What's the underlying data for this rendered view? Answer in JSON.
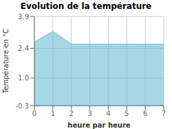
{
  "chart_data": {
    "type": "area",
    "title": "Evolution de la température",
    "xlabel": "heure par heure",
    "ylabel": "Température en °C",
    "x": [
      0,
      1,
      2,
      3,
      4,
      5,
      6,
      7
    ],
    "values": [
      2.7,
      3.2,
      2.6,
      2.6,
      2.6,
      2.6,
      2.6,
      2.6
    ],
    "color": "#6bbdd4",
    "xlim": [
      0,
      7
    ],
    "ylim": [
      -0.3,
      3.9
    ],
    "xticks": [
      0,
      1,
      2,
      3,
      4,
      5,
      6,
      7
    ],
    "yticks": [
      -0.3,
      {
        "value": 1.0,
        "label": "1.0"
      },
      2.4,
      3.9
    ],
    "grid": true
  }
}
